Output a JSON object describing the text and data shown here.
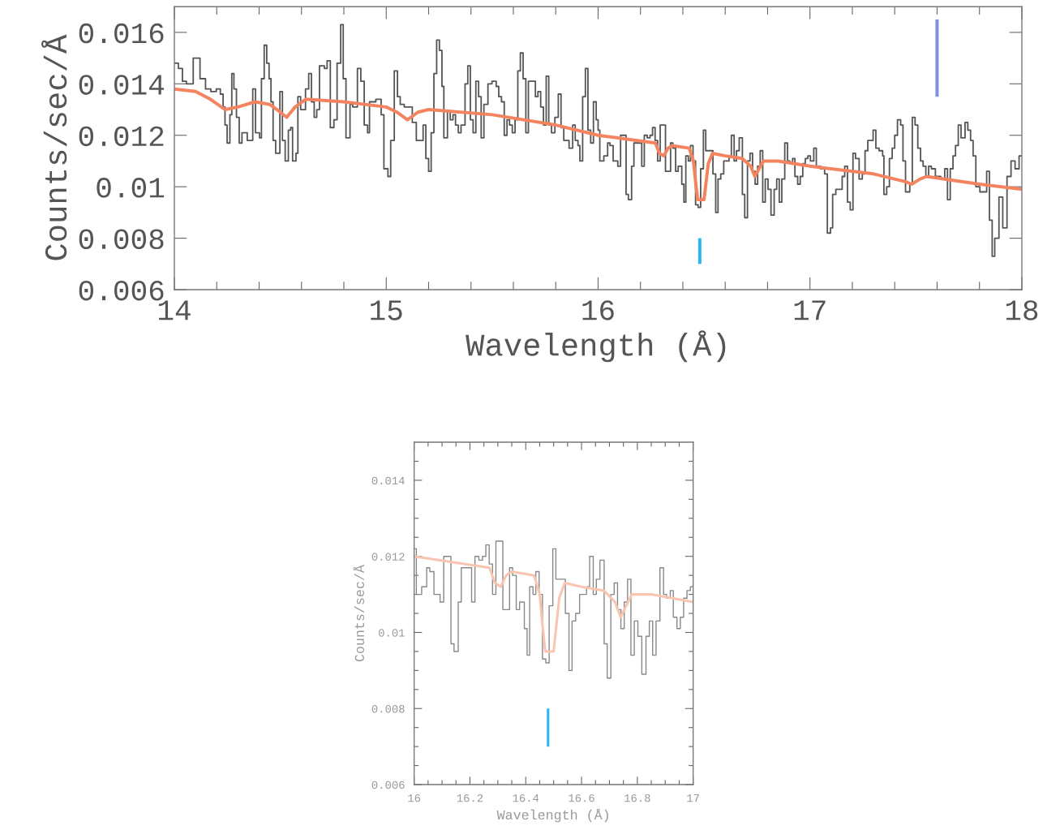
{
  "chart_data": [
    {
      "type": "step",
      "xlabel": "Wavelength (Å)",
      "ylabel": "Counts/sec/Å",
      "xlim": [
        14,
        18
      ],
      "ylim": [
        0.006,
        0.017
      ],
      "xticks": [
        14,
        {
          "value": 14.2,
          "label": null
        },
        {
          "value": 14.4,
          "label": null
        },
        {
          "value": 14.6,
          "label": null
        },
        {
          "value": 14.8,
          "label": null
        },
        15,
        {
          "value": 15.2,
          "label": null
        },
        {
          "value": 15.4,
          "label": null
        },
        {
          "value": 15.6,
          "label": null
        },
        {
          "value": 15.8,
          "label": null
        },
        16,
        {
          "value": 16.2,
          "label": null
        },
        {
          "value": 16.4,
          "label": null
        },
        {
          "value": 16.6,
          "label": null
        },
        {
          "value": 16.8,
          "label": null
        },
        17,
        {
          "value": 17.2,
          "label": null
        },
        {
          "value": 17.4,
          "label": null
        },
        {
          "value": 17.6,
          "label": null
        },
        {
          "value": 17.8,
          "label": null
        },
        18
      ],
      "yticks": [
        0.006,
        0.008,
        0.01,
        0.012,
        0.014,
        0.016
      ],
      "series": [
        {
          "type": "step",
          "color": "#555555",
          "x": [
            14.0,
            14.019,
            14.038,
            14.057,
            14.089,
            14.121,
            14.147,
            14.172,
            14.198,
            14.217,
            14.23,
            14.239,
            14.249,
            14.262,
            14.271,
            14.281,
            14.293,
            14.306,
            14.319,
            14.332,
            14.344,
            14.37,
            14.383,
            14.402,
            14.411,
            14.424,
            14.436,
            14.447,
            14.456,
            14.466,
            14.478,
            14.498,
            14.51,
            14.523,
            14.538,
            14.549,
            14.558,
            14.574,
            14.583,
            14.596,
            14.619,
            14.634,
            14.647,
            14.66,
            14.672,
            14.685,
            14.708,
            14.721,
            14.736,
            14.753,
            14.768,
            14.785,
            14.797,
            14.81,
            14.829,
            14.842,
            14.864,
            14.88,
            14.896,
            14.912,
            14.921,
            14.951,
            14.976,
            14.989,
            15.008,
            15.021,
            15.038,
            15.053,
            15.066,
            15.085,
            15.104,
            15.123,
            15.142,
            15.161,
            15.174,
            15.187,
            15.2,
            15.212,
            15.225,
            15.238,
            15.251,
            15.263,
            15.272,
            15.289,
            15.302,
            15.315,
            15.327,
            15.34,
            15.353,
            15.372,
            15.385,
            15.397,
            15.41,
            15.423,
            15.436,
            15.448,
            15.461,
            15.48,
            15.499,
            15.519,
            15.531,
            15.544,
            15.557,
            15.57,
            15.582,
            15.595,
            15.608,
            15.621,
            15.633,
            15.646,
            15.659,
            15.671,
            15.691,
            15.704,
            15.716,
            15.729,
            15.742,
            15.755,
            15.767,
            15.78,
            15.796,
            15.812,
            15.825,
            15.838,
            15.85,
            15.863,
            15.88,
            15.892,
            15.905,
            15.914,
            15.927,
            15.94,
            15.952,
            15.965,
            15.978,
            15.991,
            16.0,
            16.008,
            16.027,
            16.045,
            16.056,
            16.071,
            16.093,
            16.106,
            16.132,
            16.143,
            16.158,
            16.169,
            16.206,
            16.218,
            16.232,
            16.245,
            16.257,
            16.269,
            16.281,
            16.293,
            16.318,
            16.342,
            16.353,
            16.366,
            16.378,
            16.395,
            16.405,
            16.414,
            16.426,
            16.436,
            16.448,
            16.46,
            16.472,
            16.484,
            16.497,
            16.508,
            16.542,
            16.555,
            16.566,
            16.579,
            16.593,
            16.618,
            16.629,
            16.642,
            16.653,
            16.666,
            16.681,
            16.692,
            16.705,
            16.717,
            16.729,
            16.741,
            16.753,
            16.765,
            16.777,
            16.789,
            16.802,
            16.816,
            16.831,
            16.843,
            16.855,
            16.867,
            16.881,
            16.894,
            16.905,
            16.918,
            16.929,
            16.942,
            16.954,
            16.966,
            16.978,
            16.99,
            17.002,
            17.018,
            17.03,
            17.05,
            17.069,
            17.082,
            17.097,
            17.107,
            17.122,
            17.139,
            17.152,
            17.164,
            17.177,
            17.19,
            17.203,
            17.215,
            17.232,
            17.247,
            17.26,
            17.273,
            17.286,
            17.298,
            17.311,
            17.326,
            17.343,
            17.349,
            17.362,
            17.375,
            17.388,
            17.4,
            17.413,
            17.428,
            17.439,
            17.451,
            17.471,
            17.483,
            17.496,
            17.509,
            17.522,
            17.534,
            17.547,
            17.56,
            17.573,
            17.592,
            17.617,
            17.636,
            17.649,
            17.662,
            17.675,
            17.687,
            17.7,
            17.713,
            17.732,
            17.745,
            17.758,
            17.77,
            17.783,
            17.802,
            17.834,
            17.847,
            17.86,
            17.872,
            17.892,
            17.91,
            17.93,
            17.949,
            17.968,
            17.987,
            18.0
          ],
          "values": [
            0.0148,
            0.0146,
            0.0141,
            0.014,
            0.015,
            0.0142,
            0.0138,
            0.0137,
            0.0138,
            0.0136,
            0.0131,
            0.0124,
            0.0117,
            0.0128,
            0.0144,
            0.0138,
            0.0127,
            0.0117,
            0.0121,
            0.0121,
            0.0118,
            0.0138,
            0.0121,
            0.0119,
            0.0142,
            0.0155,
            0.0148,
            0.0142,
            0.0133,
            0.0118,
            0.0113,
            0.0137,
            0.0118,
            0.011,
            0.0122,
            0.0123,
            0.011,
            0.0113,
            0.0135,
            0.013,
            0.0138,
            0.0144,
            0.0133,
            0.0127,
            0.013,
            0.0147,
            0.0146,
            0.0149,
            0.0123,
            0.0126,
            0.0148,
            0.0163,
            0.0142,
            0.0119,
            0.0132,
            0.0131,
            0.0146,
            0.0141,
            0.0124,
            0.0121,
            0.0133,
            0.0134,
            0.0128,
            0.0107,
            0.0104,
            0.0118,
            0.0145,
            0.0135,
            0.0132,
            0.0131,
            0.0131,
            0.0125,
            0.0118,
            0.0118,
            0.0124,
            0.0111,
            0.0106,
            0.0121,
            0.0144,
            0.0157,
            0.0153,
            0.0139,
            0.0119,
            0.0129,
            0.0126,
            0.0128,
            0.0124,
            0.0121,
            0.0124,
            0.014,
            0.0147,
            0.0126,
            0.0121,
            0.0141,
            0.0135,
            0.0119,
            0.0132,
            0.014,
            0.0141,
            0.0139,
            0.0135,
            0.0133,
            0.012,
            0.0126,
            0.0124,
            0.0121,
            0.0126,
            0.0145,
            0.0152,
            0.0142,
            0.0121,
            0.0141,
            0.0141,
            0.0135,
            0.0137,
            0.0131,
            0.0124,
            0.0143,
            0.0124,
            0.0121,
            0.0127,
            0.0136,
            0.0123,
            0.0118,
            0.0118,
            0.0115,
            0.0124,
            0.0118,
            0.0116,
            0.011,
            0.0135,
            0.0146,
            0.0122,
            0.0117,
            0.0133,
            0.0126,
            0.0122,
            0.011,
            0.0112,
            0.0117,
            0.0116,
            0.011,
            0.0108,
            0.012,
            0.0097,
            0.0095,
            0.0108,
            0.0117,
            0.0108,
            0.012,
            0.0119,
            0.012,
            0.0123,
            0.0118,
            0.011,
            0.0124,
            0.0106,
            0.0117,
            0.0115,
            0.0106,
            0.0108,
            0.0101,
            0.0094,
            0.0112,
            0.011,
            0.0116,
            0.011,
            0.0093,
            0.0092,
            0.0107,
            0.0122,
            0.0114,
            0.0105,
            0.009,
            0.0103,
            0.0105,
            0.011,
            0.0112,
            0.012,
            0.011,
            0.0114,
            0.0119,
            0.0097,
            0.0088,
            0.011,
            0.0113,
            0.0106,
            0.0101,
            0.0108,
            0.0114,
            0.0094,
            0.0103,
            0.0099,
            0.0089,
            0.0099,
            0.0103,
            0.0094,
            0.0103,
            0.0117,
            0.011,
            0.0109,
            0.0111,
            0.0104,
            0.0101,
            0.0104,
            0.0109,
            0.0111,
            0.0112,
            0.011,
            0.0115,
            0.0108,
            0.0107,
            0.0105,
            0.0082,
            0.0084,
            0.0097,
            0.0099,
            0.0099,
            0.0104,
            0.0108,
            0.0094,
            0.0091,
            0.0113,
            0.0111,
            0.0103,
            0.0105,
            0.0114,
            0.0118,
            0.0118,
            0.0122,
            0.0115,
            0.0114,
            0.0112,
            0.0097,
            0.01,
            0.0111,
            0.0115,
            0.012,
            0.0126,
            0.0124,
            0.011,
            0.0098,
            0.0101,
            0.0127,
            0.0124,
            0.0115,
            0.011,
            0.0108,
            0.0104,
            0.0108,
            0.0107,
            0.0104,
            0.0103,
            0.0107,
            0.0095,
            0.0107,
            0.0112,
            0.0116,
            0.0124,
            0.0119,
            0.0125,
            0.0122,
            0.0118,
            0.0112,
            0.01,
            0.0098,
            0.0106,
            0.0087,
            0.0073,
            0.008,
            0.0096,
            0.0084,
            0.0104,
            0.011,
            0.0107,
            0.0112,
            0.0112
          ]
        },
        {
          "type": "line",
          "color": "#f4845f",
          "x": [
            14.0,
            14.1,
            14.17,
            14.24,
            14.3,
            14.38,
            14.45,
            14.5,
            14.53,
            14.57,
            14.62,
            14.8,
            15.0,
            15.05,
            15.1,
            15.15,
            15.2,
            15.5,
            15.8,
            16.0,
            16.27,
            16.29,
            16.31,
            16.33,
            16.35,
            16.43,
            16.45,
            16.46,
            16.47,
            16.5,
            16.51,
            16.52,
            16.54,
            16.6,
            16.68,
            16.72,
            16.74,
            16.76,
            16.78,
            16.85,
            17.0,
            17.3,
            17.45,
            17.48,
            17.52,
            17.55,
            17.8,
            18.0
          ],
          "values": [
            0.0138,
            0.0137,
            0.0134,
            0.013,
            0.0131,
            0.0133,
            0.0132,
            0.0129,
            0.0127,
            0.0131,
            0.0134,
            0.0133,
            0.0131,
            0.0129,
            0.0126,
            0.0129,
            0.013,
            0.0128,
            0.0124,
            0.012,
            0.0117,
            0.0113,
            0.0112,
            0.0115,
            0.0116,
            0.0115,
            0.011,
            0.0102,
            0.0095,
            0.0095,
            0.0102,
            0.0109,
            0.0113,
            0.0112,
            0.0111,
            0.0108,
            0.0104,
            0.0107,
            0.011,
            0.011,
            0.0108,
            0.0105,
            0.0102,
            0.0101,
            0.0103,
            0.0104,
            0.0101,
            0.0099
          ]
        },
        {
          "type": "line",
          "color": "#29b6f6",
          "x": [
            16.48,
            16.48
          ],
          "values": [
            0.007,
            0.008
          ]
        },
        {
          "type": "line",
          "color": "#8090e0",
          "x": [
            17.6,
            17.6
          ],
          "values": [
            0.0135,
            0.0165
          ]
        }
      ]
    },
    {
      "type": "step",
      "xlabel": "Wavelength (Å)",
      "ylabel": "Counts/sec/Å",
      "xlim": [
        16,
        17
      ],
      "ylim": [
        0.006,
        0.015
      ],
      "xticks": [
        16,
        {
          "value": 16.05,
          "label": null
        },
        {
          "value": 16.1,
          "label": null
        },
        {
          "value": 16.15,
          "label": null
        },
        16.2,
        {
          "value": 16.25,
          "label": null
        },
        {
          "value": 16.3,
          "label": null
        },
        {
          "value": 16.35,
          "label": null
        },
        16.4,
        {
          "value": 16.45,
          "label": null
        },
        {
          "value": 16.5,
          "label": null
        },
        {
          "value": 16.55,
          "label": null
        },
        16.6,
        {
          "value": 16.65,
          "label": null
        },
        {
          "value": 16.7,
          "label": null
        },
        {
          "value": 16.75,
          "label": null
        },
        16.8,
        {
          "value": 16.85,
          "label": null
        },
        {
          "value": 16.9,
          "label": null
        },
        {
          "value": 16.95,
          "label": null
        },
        17
      ],
      "yticks": [
        0.006,
        {
          "value": 0.0065,
          "label": null
        },
        {
          "value": 0.007,
          "label": null
        },
        {
          "value": 0.0075,
          "label": null
        },
        0.008,
        {
          "value": 0.0085,
          "label": null
        },
        {
          "value": 0.009,
          "label": null
        },
        {
          "value": 0.0095,
          "label": null
        },
        0.01,
        {
          "value": 0.0105,
          "label": null
        },
        {
          "value": 0.011,
          "label": null
        },
        {
          "value": 0.0115,
          "label": null
        },
        0.012,
        {
          "value": 0.0125,
          "label": null
        },
        {
          "value": 0.013,
          "label": null
        },
        {
          "value": 0.0135,
          "label": null
        },
        0.014,
        {
          "value": 0.0145,
          "label": null
        }
      ],
      "series": [
        {
          "type": "step",
          "color": "#888888",
          "x": [
            16.0,
            16.008,
            16.027,
            16.045,
            16.056,
            16.071,
            16.093,
            16.106,
            16.132,
            16.143,
            16.158,
            16.169,
            16.206,
            16.218,
            16.232,
            16.245,
            16.257,
            16.269,
            16.281,
            16.293,
            16.318,
            16.342,
            16.353,
            16.366,
            16.378,
            16.395,
            16.405,
            16.414,
            16.426,
            16.436,
            16.448,
            16.46,
            16.472,
            16.484,
            16.497,
            16.508,
            16.542,
            16.555,
            16.566,
            16.579,
            16.593,
            16.618,
            16.629,
            16.642,
            16.653,
            16.666,
            16.681,
            16.692,
            16.705,
            16.717,
            16.729,
            16.741,
            16.753,
            16.765,
            16.777,
            16.789,
            16.802,
            16.816,
            16.831,
            16.843,
            16.855,
            16.867,
            16.881,
            16.894,
            16.905,
            16.918,
            16.929,
            16.942,
            16.954,
            16.966,
            16.978,
            16.99,
            17.0
          ],
          "values": [
            0.0122,
            0.011,
            0.0112,
            0.0117,
            0.0116,
            0.011,
            0.0108,
            0.012,
            0.0097,
            0.0095,
            0.0108,
            0.0117,
            0.0108,
            0.012,
            0.0119,
            0.012,
            0.0123,
            0.0118,
            0.011,
            0.0124,
            0.0106,
            0.0117,
            0.0115,
            0.0106,
            0.0108,
            0.0101,
            0.0094,
            0.0112,
            0.011,
            0.0116,
            0.011,
            0.0093,
            0.0092,
            0.0107,
            0.0122,
            0.0114,
            0.0105,
            0.009,
            0.0103,
            0.0105,
            0.011,
            0.0112,
            0.012,
            0.011,
            0.0114,
            0.0119,
            0.0097,
            0.0088,
            0.011,
            0.0113,
            0.0106,
            0.0101,
            0.0108,
            0.0114,
            0.0094,
            0.0103,
            0.0099,
            0.0089,
            0.0099,
            0.0103,
            0.0094,
            0.0103,
            0.0117,
            0.011,
            0.0109,
            0.0111,
            0.0104,
            0.0101,
            0.0104,
            0.0109,
            0.0111,
            0.0112,
            0.0112
          ]
        },
        {
          "type": "line",
          "color": "#f9c4b0",
          "x": [
            16.0,
            16.27,
            16.29,
            16.31,
            16.33,
            16.35,
            16.43,
            16.45,
            16.46,
            16.47,
            16.5,
            16.51,
            16.52,
            16.54,
            16.6,
            16.68,
            16.72,
            16.74,
            16.76,
            16.78,
            16.85,
            17.0
          ],
          "values": [
            0.012,
            0.0117,
            0.0113,
            0.0112,
            0.0115,
            0.0116,
            0.0115,
            0.011,
            0.0102,
            0.0095,
            0.0095,
            0.0102,
            0.0109,
            0.0113,
            0.0112,
            0.0111,
            0.0108,
            0.0104,
            0.0107,
            0.011,
            0.011,
            0.0108
          ]
        },
        {
          "type": "line",
          "color": "#29b6f6",
          "x": [
            16.48,
            16.48
          ],
          "values": [
            0.007,
            0.008
          ]
        }
      ]
    }
  ]
}
